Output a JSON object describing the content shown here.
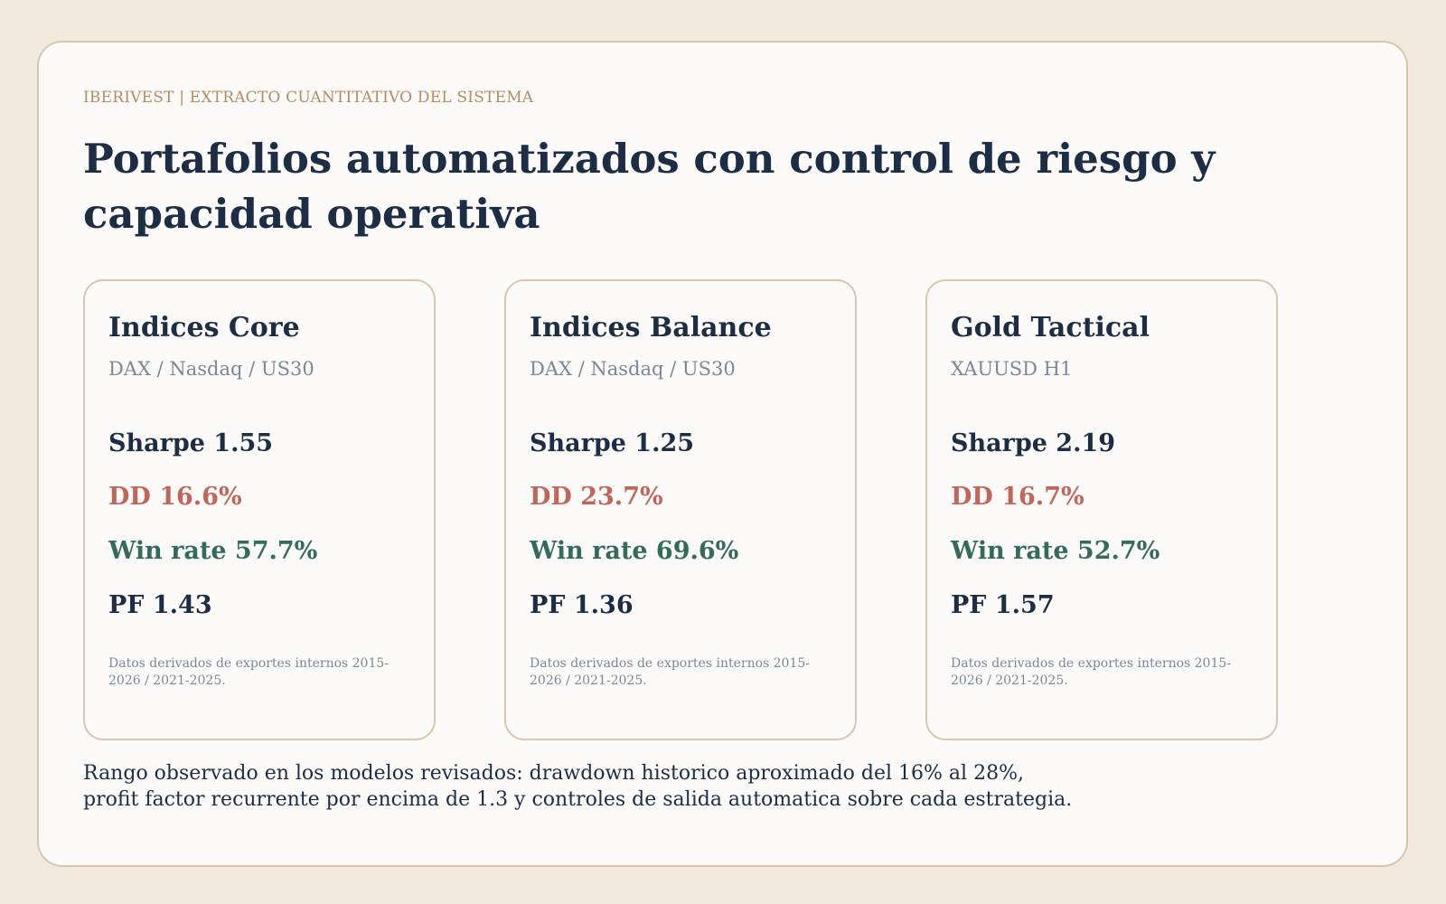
{
  "header": {
    "eyebrow": "IBERIVEST | EXTRACTO CUANTITATIVO DEL SISTEMA",
    "title": "Portafolios automatizados con control de riesgo y capacidad operativa"
  },
  "portfolios": [
    {
      "name": "Indices Core",
      "instruments": "DAX / Nasdaq / US30",
      "sharpe": "Sharpe 1.55",
      "drawdown": "DD 16.6%",
      "win_rate": "Win rate 57.7%",
      "profit_factor": "PF 1.43",
      "note": "Datos derivados de exportes internos 2015-2026 / 2021-2025."
    },
    {
      "name": "Indices Balance",
      "instruments": "DAX / Nasdaq / US30",
      "sharpe": "Sharpe 1.25",
      "drawdown": "DD 23.7%",
      "win_rate": "Win rate 69.6%",
      "profit_factor": "PF 1.36",
      "note": "Datos derivados de exportes internos 2015-2026 / 2021-2025."
    },
    {
      "name": "Gold Tactical",
      "instruments": "XAUUSD H1",
      "sharpe": "Sharpe 2.19",
      "drawdown": "DD 16.7%",
      "win_rate": "Win rate 52.7%",
      "profit_factor": "PF 1.57",
      "note": "Datos derivados de exportes internos 2015-2026 / 2021-2025."
    }
  ],
  "footer": {
    "line1": "Rango observado en los modelos revisados: drawdown historico aproximado del 16% al 28%,",
    "line2": "profit factor recurrente por encima de 1.3 y controles de salida automatica sobre cada estrategia."
  },
  "colors": {
    "page_background": "#f3eadf",
    "panel_background": "#fcfbfa",
    "border": "#d8c6ae",
    "navy": "#1d2d44",
    "eyebrow_gold": "#b68c5f",
    "muted": "#7c8797",
    "drawdown_red": "#c0665a",
    "win_green": "#336b5c"
  }
}
